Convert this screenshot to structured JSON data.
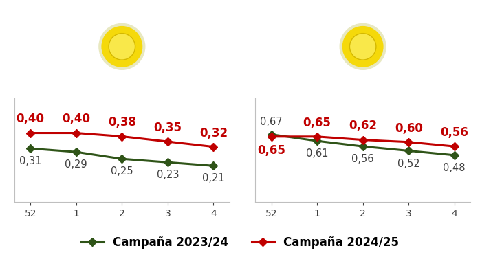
{
  "chart_data": [
    {
      "type": "line",
      "categories": [
        "52",
        "1",
        "2",
        "3",
        "4"
      ],
      "series": [
        {
          "name": "Campaña 2023/24",
          "color": "#2f5418",
          "marker": "diamond",
          "line_style": "solid",
          "values": [
            0.31,
            0.29,
            0.25,
            0.23,
            0.21
          ],
          "value_labels": [
            "0,31",
            "0,29",
            "0,25",
            "0,23",
            "0,21"
          ]
        },
        {
          "name": "Campaña 2024/25",
          "color": "#c00000",
          "marker": "diamond",
          "line_style": "solid",
          "values": [
            0.4,
            0.4,
            0.38,
            0.35,
            0.32
          ],
          "value_labels": [
            "0,40",
            "0,40",
            "0,38",
            "0,35",
            "0,32"
          ]
        }
      ],
      "ylim": [
        0,
        0.6
      ],
      "data_labels": true,
      "tick_labels": "x",
      "grid": false,
      "legend": "lower center"
    },
    {
      "type": "line",
      "categories": [
        "52",
        "1",
        "2",
        "3",
        "4"
      ],
      "series": [
        {
          "name": "Campaña 2023/24",
          "color": "#2f5418",
          "marker": "diamond",
          "line_style": "solid",
          "values": [
            0.67,
            0.61,
            0.56,
            0.52,
            0.48
          ],
          "value_labels": [
            "0,67",
            "0,61",
            "0,56",
            "0,52",
            "0,48"
          ]
        },
        {
          "name": "Campaña 2024/25",
          "color": "#c00000",
          "marker": "diamond",
          "line_style": "solid",
          "values": [
            0.65,
            0.65,
            0.62,
            0.6,
            0.56
          ],
          "value_labels": [
            "0,65",
            "0,65",
            "0,62",
            "0,60",
            "0,56"
          ]
        }
      ],
      "ylim": [
        0.05,
        1.0
      ],
      "data_labels": true,
      "tick_labels": "x",
      "grid": false,
      "legend": "lower center"
    }
  ]
}
